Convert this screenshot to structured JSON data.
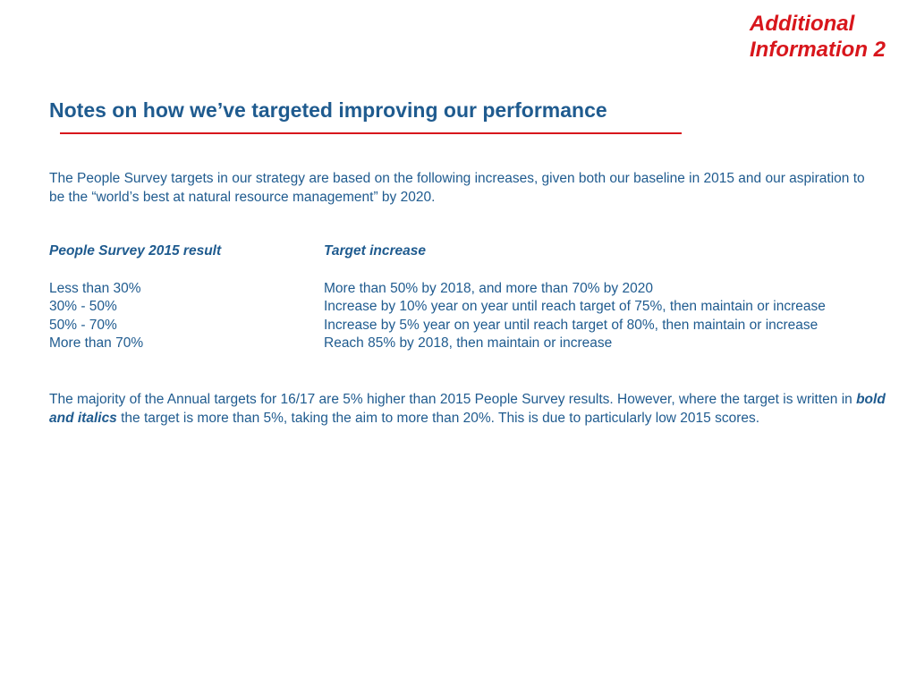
{
  "corner_label": {
    "line1": "Additional",
    "line2": "Information 2"
  },
  "title": "Notes on how we’ve targeted improving our performance",
  "intro": "The People Survey targets in our strategy are based on the following increases, given both our baseline in 2015 and our aspiration to be the “world’s best at natural resource management” by 2020.",
  "table": {
    "headers": [
      "People Survey 2015 result",
      "Target increase"
    ],
    "rows": [
      [
        "Less than 30%",
        "More than 50% by 2018, and more than 70% by 2020"
      ],
      [
        "30% - 50%",
        "Increase by 10% year on year until reach target of 75%, then maintain or increase"
      ],
      [
        "50% - 70%",
        "Increase by 5% year on year until reach target of 80%, then maintain or increase"
      ],
      [
        "More than 70%",
        "Reach 85% by 2018, then maintain or increase"
      ]
    ]
  },
  "closing": {
    "before": "The majority of the Annual targets for 16/17 are 5% higher than 2015 People Survey results. However, where the target is written in ",
    "emphasis": "bold and italics",
    "after": " the target is more than 5%, taking the aim to more than 20%. This is due to particularly low 2015 scores."
  },
  "colors": {
    "text": "#1f5b8f",
    "accent_red": "#d8161c",
    "background": "#ffffff"
  }
}
